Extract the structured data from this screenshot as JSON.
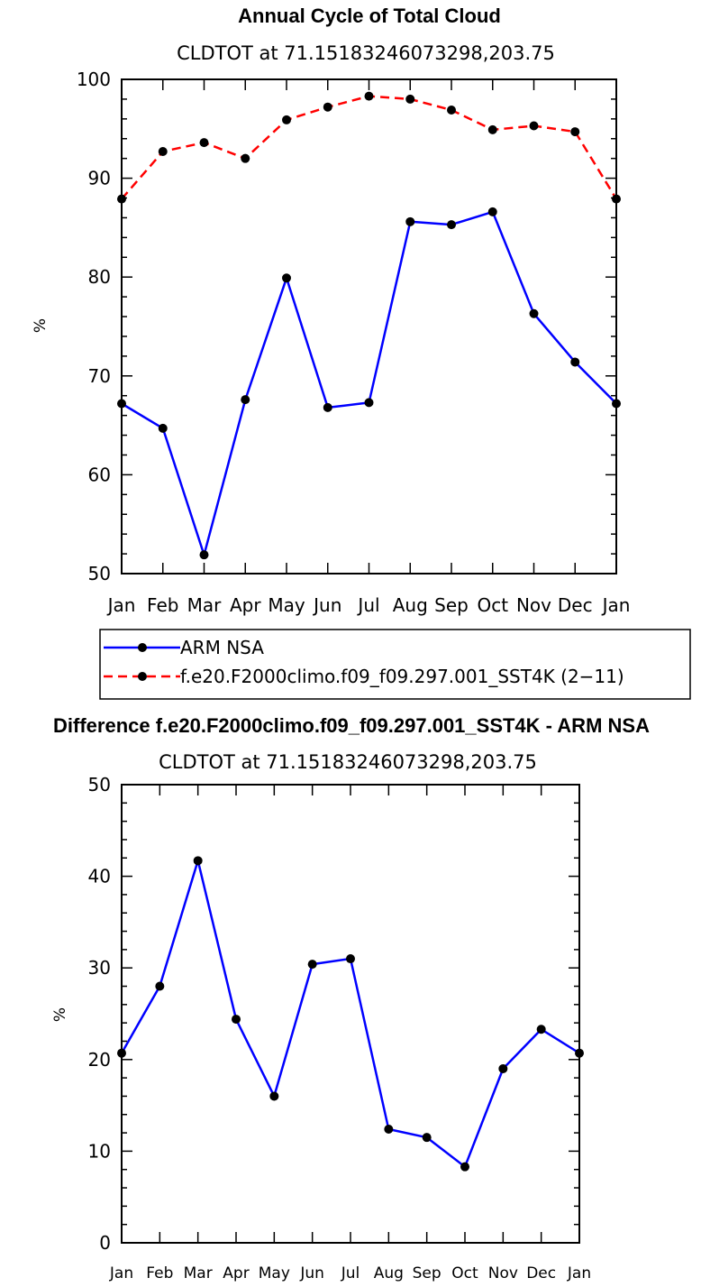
{
  "chart_data": [
    {
      "type": "line",
      "title": "Annual Cycle of Total Cloud",
      "subtitle": "CLDTOT at 71.15183246073298,203.75",
      "ylabel": "%",
      "xlabel": "",
      "ylim": [
        50,
        100
      ],
      "yticks": [
        50,
        60,
        70,
        80,
        90,
        100
      ],
      "categories": [
        "Jan",
        "Feb",
        "Mar",
        "Apr",
        "May",
        "Jun",
        "Jul",
        "Aug",
        "Sep",
        "Oct",
        "Nov",
        "Dec",
        "Jan"
      ],
      "series": [
        {
          "name": "ARM NSA",
          "color": "#0000ff",
          "dash": "solid",
          "values": [
            67.2,
            64.7,
            51.9,
            67.6,
            79.9,
            66.8,
            67.3,
            85.6,
            85.3,
            86.6,
            76.3,
            71.4,
            67.2
          ]
        },
        {
          "name": "f.e20.F2000climo.f09_f09.297.001_SST4K (2−11)",
          "color": "#ff0000",
          "dash": "dashed",
          "values": [
            87.9,
            92.7,
            93.6,
            92.0,
            95.9,
            97.2,
            98.3,
            98.0,
            96.9,
            94.9,
            95.3,
            94.7,
            87.9
          ]
        }
      ],
      "legend": [
        "ARM NSA",
        "f.e20.F2000climo.f09_f09.297.001_SST4K (2−11)"
      ]
    },
    {
      "type": "line",
      "title": "Difference f.e20.F2000climo.f09_f09.297.001_SST4K - ARM NSA",
      "subtitle": "CLDTOT at 71.15183246073298,203.75",
      "ylabel": "%",
      "xlabel": "",
      "ylim": [
        0,
        50
      ],
      "yticks": [
        0,
        10,
        20,
        30,
        40,
        50
      ],
      "categories": [
        "Jan",
        "Feb",
        "Mar",
        "Apr",
        "May",
        "Jun",
        "Jul",
        "Aug",
        "Sep",
        "Oct",
        "Nov",
        "Dec",
        "Jan"
      ],
      "series": [
        {
          "name": "Difference",
          "color": "#0000ff",
          "dash": "solid",
          "values": [
            20.7,
            28.0,
            41.7,
            24.4,
            16.0,
            30.4,
            31.0,
            12.4,
            11.5,
            8.3,
            19.0,
            23.3,
            20.7
          ]
        }
      ]
    }
  ]
}
